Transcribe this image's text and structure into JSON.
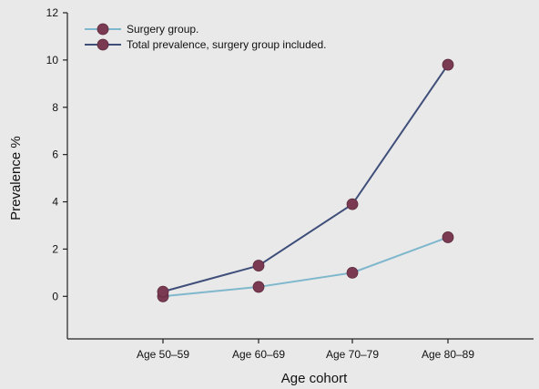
{
  "chart_data": {
    "type": "line",
    "categories": [
      "Age 50–59",
      "Age 60–69",
      "Age 70–79",
      "Age 80–89"
    ],
    "series": [
      {
        "name": "Surgery group.",
        "values": [
          0.0,
          0.4,
          1.0,
          2.5
        ],
        "color": "#7fb7cc"
      },
      {
        "name": "Total prevalence, surgery group included.",
        "values": [
          0.2,
          1.3,
          3.9,
          9.8
        ],
        "color": "#3f4f7a"
      }
    ],
    "marker_color": "#7a3b52",
    "title": "",
    "xlabel": "Age cohort",
    "ylabel": "Prevalence %",
    "ylim": [
      -1.8,
      12
    ],
    "yticks": [
      0,
      2,
      4,
      6,
      8,
      10,
      12
    ],
    "grid": false,
    "legend": "top-left"
  }
}
